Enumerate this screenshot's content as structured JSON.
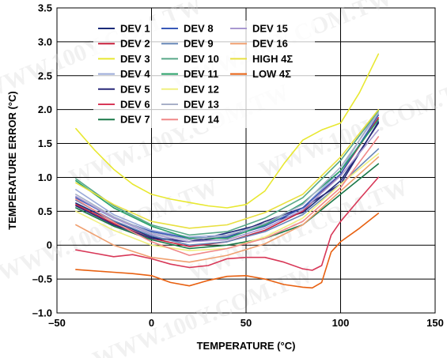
{
  "chart_data": {
    "type": "line",
    "xlabel": "TEMPERATURE (°C)",
    "ylabel": "TEMPERATURE ERROR (°C)",
    "xlim": [
      -50,
      150
    ],
    "ylim": [
      -1.0,
      3.5
    ],
    "xticks": [
      -50,
      0,
      50,
      100,
      150
    ],
    "xtick_labels": [
      "–50",
      "0",
      "50",
      "100",
      "150"
    ],
    "yticks": [
      3.5,
      3.0,
      2.5,
      2.0,
      1.5,
      1.0,
      0.5,
      0,
      -0.5,
      -1.0
    ],
    "ytick_labels": [
      "3.5",
      "3.0",
      "2.5",
      "2.0",
      "1.5",
      "1.0",
      "0.5",
      "0",
      "–0.5",
      "–1.0"
    ],
    "grid": true,
    "legend_position": "top",
    "watermark": "WWW.100Y.COM.TW",
    "series": [
      {
        "name": "DEV 1",
        "color": "#1a2a78",
        "x": [
          -40,
          -20,
          0,
          20,
          40,
          60,
          80,
          100,
          120
        ],
        "y": [
          0.62,
          0.35,
          0.12,
          0.05,
          0.18,
          0.32,
          0.48,
          0.95,
          1.8
        ]
      },
      {
        "name": "DEV 2",
        "color": "#c8203c",
        "x": [
          -40,
          -20,
          0,
          20,
          40,
          60,
          80,
          100,
          120
        ],
        "y": [
          0.6,
          0.32,
          0.1,
          -0.02,
          0.05,
          0.22,
          0.5,
          1.05,
          1.88
        ]
      },
      {
        "name": "DEV 3",
        "color": "#e8e830",
        "x": [
          -40,
          -30,
          -20,
          -10,
          0,
          10,
          20,
          30,
          40,
          50,
          60,
          70,
          80,
          90,
          100,
          110,
          120
        ],
        "y": [
          1.72,
          1.4,
          1.12,
          0.9,
          0.75,
          0.68,
          0.63,
          0.58,
          0.55,
          0.6,
          0.8,
          1.2,
          1.55,
          1.7,
          1.8,
          2.25,
          2.82
        ]
      },
      {
        "name": "DEV 4",
        "color": "#9aaad8",
        "x": [
          -40,
          -20,
          0,
          20,
          40,
          60,
          80,
          100,
          120
        ],
        "y": [
          0.82,
          0.45,
          0.22,
          0.12,
          0.15,
          0.3,
          0.55,
          1.1,
          2.0
        ]
      },
      {
        "name": "DEV 5",
        "color": "#282878",
        "x": [
          -40,
          -20,
          0,
          20,
          40,
          60,
          80,
          100,
          120
        ],
        "y": [
          0.58,
          0.3,
          0.1,
          0.05,
          0.12,
          0.35,
          0.55,
          0.9,
          1.82
        ]
      },
      {
        "name": "DEV 6",
        "color": "#d83858",
        "x": [
          -40,
          -30,
          -20,
          -10,
          0,
          10,
          20,
          30,
          40,
          50,
          60,
          70,
          80,
          85,
          90,
          95,
          100,
          110,
          120
        ],
        "y": [
          -0.07,
          -0.12,
          -0.17,
          -0.14,
          -0.2,
          -0.28,
          -0.33,
          -0.3,
          -0.2,
          -0.18,
          -0.18,
          -0.25,
          -0.35,
          -0.37,
          -0.3,
          0.15,
          0.35,
          0.68,
          1.0
        ]
      },
      {
        "name": "DEV 7",
        "color": "#1a7848",
        "x": [
          -40,
          -20,
          0,
          20,
          40,
          60,
          80,
          100,
          120
        ],
        "y": [
          0.55,
          0.28,
          0.08,
          -0.05,
          0.0,
          0.1,
          0.3,
          0.75,
          1.2
        ]
      },
      {
        "name": "DEV 8",
        "color": "#3858b8",
        "x": [
          -40,
          -20,
          0,
          20,
          40,
          60,
          80,
          100,
          120
        ],
        "y": [
          0.7,
          0.4,
          0.2,
          0.1,
          0.12,
          0.28,
          0.55,
          1.05,
          1.92
        ]
      },
      {
        "name": "DEV 9",
        "color": "#6888b8",
        "x": [
          -40,
          -20,
          0,
          20,
          40,
          60,
          80,
          100,
          120
        ],
        "y": [
          0.66,
          0.36,
          0.14,
          0.0,
          0.05,
          0.2,
          0.45,
          0.9,
          1.42
        ]
      },
      {
        "name": "DEV 10",
        "color": "#58a888",
        "x": [
          -40,
          -20,
          0,
          20,
          40,
          60,
          80,
          100,
          120
        ],
        "y": [
          0.98,
          0.58,
          0.3,
          0.15,
          0.2,
          0.4,
          0.7,
          1.25,
          1.98
        ]
      },
      {
        "name": "DEV 11",
        "color": "#28a068",
        "x": [
          -40,
          -20,
          0,
          20,
          40,
          60,
          80,
          100,
          120
        ],
        "y": [
          0.95,
          0.55,
          0.28,
          0.1,
          0.1,
          0.3,
          0.62,
          1.1,
          1.85
        ]
      },
      {
        "name": "DEV 12",
        "color": "#f0f080",
        "x": [
          -40,
          -20,
          0,
          20,
          40,
          60,
          80,
          100,
          120
        ],
        "y": [
          0.5,
          0.22,
          0.0,
          -0.08,
          -0.05,
          0.12,
          0.4,
          0.9,
          1.35
        ]
      },
      {
        "name": "DEV 13",
        "color": "#a8b0c8",
        "x": [
          -40,
          -20,
          0,
          20,
          40,
          60,
          80,
          100,
          120
        ],
        "y": [
          0.75,
          0.42,
          0.18,
          0.08,
          0.14,
          0.32,
          0.6,
          1.15,
          1.95
        ]
      },
      {
        "name": "DEV 14",
        "color": "#f08888",
        "x": [
          -40,
          -20,
          0,
          20,
          40,
          60,
          80,
          100,
          120
        ],
        "y": [
          0.68,
          0.34,
          0.05,
          -0.15,
          -0.05,
          0.1,
          0.35,
          0.85,
          1.6
        ]
      },
      {
        "name": "DEV 15",
        "color": "#a898d0",
        "x": [
          -40,
          -20,
          0,
          20,
          40,
          60,
          80,
          100,
          120
        ],
        "y": [
          0.72,
          0.4,
          0.16,
          0.05,
          0.08,
          0.25,
          0.52,
          1.02,
          1.7
        ]
      },
      {
        "name": "DEV 16",
        "color": "#f0a070",
        "x": [
          -40,
          -20,
          0,
          20,
          40,
          60,
          80,
          100,
          120
        ],
        "y": [
          0.3,
          0.0,
          -0.18,
          -0.25,
          -0.15,
          0.02,
          0.3,
          0.8,
          1.3
        ]
      },
      {
        "name": "HIGH 4Σ",
        "color": "#e8e040",
        "x": [
          -40,
          -20,
          0,
          20,
          40,
          60,
          80,
          100,
          120
        ],
        "y": [
          0.92,
          0.6,
          0.35,
          0.25,
          0.3,
          0.48,
          0.75,
          1.3,
          2.0
        ]
      },
      {
        "name": "LOW 4Σ",
        "color": "#e86010",
        "x": [
          -40,
          -30,
          -20,
          -10,
          0,
          10,
          20,
          30,
          40,
          50,
          60,
          70,
          80,
          85,
          90,
          95,
          100,
          110,
          120
        ],
        "y": [
          -0.36,
          -0.38,
          -0.4,
          -0.42,
          -0.45,
          -0.55,
          -0.6,
          -0.52,
          -0.46,
          -0.45,
          -0.5,
          -0.58,
          -0.62,
          -0.63,
          -0.55,
          -0.1,
          0.05,
          0.25,
          0.47
        ]
      }
    ]
  }
}
